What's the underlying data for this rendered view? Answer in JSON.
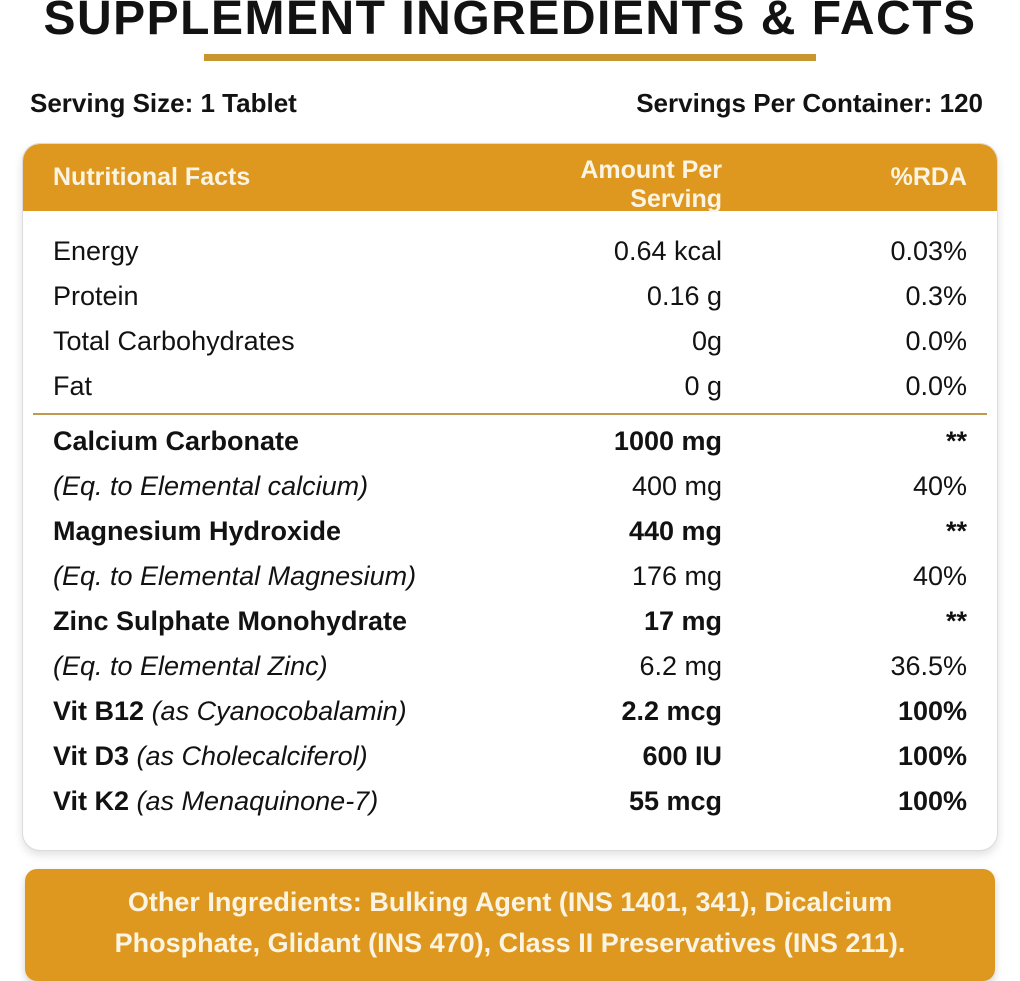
{
  "page": {
    "title": "SUPPLEMENT INGREDIENTS & FACTS",
    "serving_size": "Serving Size: 1 Tablet",
    "servings_per_container": "Servings Per Container: 120"
  },
  "table": {
    "headers": {
      "name": "Nutritional Facts",
      "amount": "Amount Per Serving",
      "rda": "%RDA"
    },
    "rows": [
      {
        "name": "Energy",
        "amount": "0.64 kcal",
        "rda": "0.03%",
        "style": "regular"
      },
      {
        "name": "Protein",
        "amount": "0.16 g",
        "rda": "0.3%",
        "style": "regular"
      },
      {
        "name": "Total Carbohydrates",
        "amount": "0g",
        "rda": "0.0%",
        "style": "regular"
      },
      {
        "name": "Fat",
        "amount": "0 g",
        "rda": "0.0%",
        "style": "regular"
      },
      {
        "name": "Calcium Carbonate",
        "amount": "1000 mg",
        "rda": "**",
        "style": "bold"
      },
      {
        "name": "(Eq. to Elemental calcium)",
        "amount": "400 mg",
        "rda": "40%",
        "style": "italic"
      },
      {
        "name": "Magnesium Hydroxide",
        "amount": "440 mg",
        "rda": "**",
        "style": "bold"
      },
      {
        "name": "(Eq. to Elemental Magnesium)",
        "amount": "176 mg",
        "rda": "40%",
        "style": "italic"
      },
      {
        "name": "Zinc Sulphate Monohydrate",
        "amount": "17 mg",
        "rda": "**",
        "style": "bold"
      },
      {
        "name": "(Eq. to Elemental Zinc)",
        "amount": "6.2 mg",
        "rda": "36.5%",
        "style": "italic"
      },
      {
        "name_bold": "Vit B12",
        "name_italic": "(as Cyanocobalamin)",
        "amount": "2.2 mcg",
        "rda": "100%",
        "style": "vit"
      },
      {
        "name_bold": "Vit D3",
        "name_italic": "(as Cholecalciferol)",
        "amount": "600 IU",
        "rda": "100%",
        "style": "vit"
      },
      {
        "name_bold": "Vit K2",
        "name_italic": "(as Menaquinone-7)",
        "amount": "55 mcg",
        "rda": "100%",
        "style": "vit"
      }
    ],
    "divider_after_row_index": 3
  },
  "footer": {
    "other_ingredients": "Other Ingredients: Bulking Agent (INS 1401, 341), Dicalcium Phosphate, Glidant (INS 470), Class II Preservatives (INS 211)."
  },
  "colors": {
    "accent": "#DE981F",
    "gold": "#C8952F",
    "divider": "#C09A4F",
    "ink": "#121212",
    "header-text": "#FBF4E2",
    "card-border": "#DBDBDB"
  }
}
